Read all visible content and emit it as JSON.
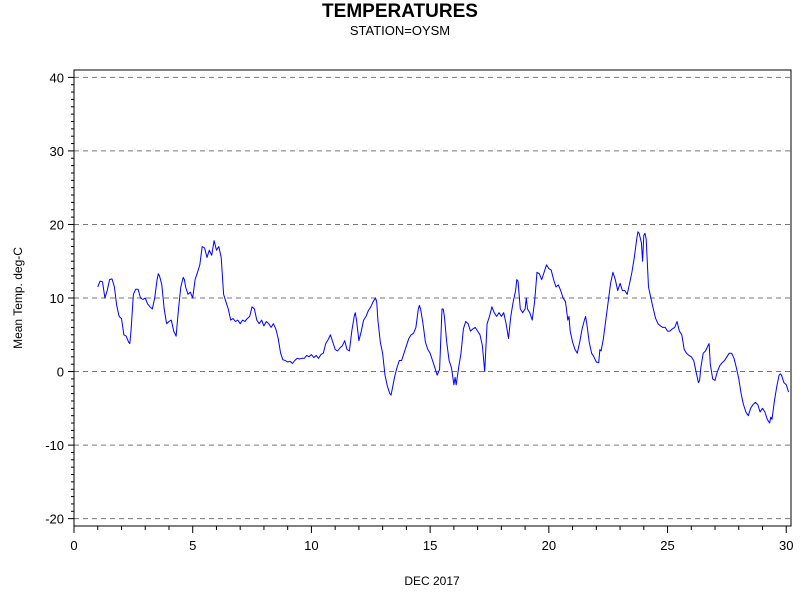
{
  "chart_data": {
    "type": "line",
    "title": "TEMPERATURES",
    "subtitle": "STATION=OYSM",
    "xlabel": "DEC 2017",
    "ylabel": "Mean Temp. deg-C",
    "xlim": [
      0,
      30.2
    ],
    "ylim": [
      -21,
      41
    ],
    "x_ticks": [
      0,
      5,
      10,
      15,
      20,
      25,
      30
    ],
    "y_ticks": [
      -20,
      -10,
      0,
      10,
      20,
      30,
      40
    ],
    "grid": "horizontal dashed",
    "series": [
      {
        "color": "#0000ff",
        "points": [
          [
            1.0,
            11.5
          ],
          [
            1.1,
            12.3
          ],
          [
            1.2,
            12.2
          ],
          [
            1.3,
            10.0
          ],
          [
            1.4,
            11.0
          ],
          [
            1.5,
            12.5
          ],
          [
            1.6,
            12.6
          ],
          [
            1.7,
            11.5
          ],
          [
            1.8,
            9.0
          ],
          [
            1.9,
            7.5
          ],
          [
            2.0,
            7.2
          ],
          [
            2.1,
            5.0
          ],
          [
            2.2,
            4.8
          ],
          [
            2.3,
            4.0
          ],
          [
            2.35,
            3.8
          ],
          [
            2.4,
            5.5
          ],
          [
            2.5,
            10.5
          ],
          [
            2.6,
            11.2
          ],
          [
            2.7,
            11.2
          ],
          [
            2.8,
            10.0
          ],
          [
            2.9,
            9.8
          ],
          [
            3.0,
            10.0
          ],
          [
            3.1,
            9.2
          ],
          [
            3.2,
            8.8
          ],
          [
            3.3,
            8.5
          ],
          [
            3.4,
            10.0
          ],
          [
            3.5,
            12.5
          ],
          [
            3.55,
            13.3
          ],
          [
            3.6,
            13.0
          ],
          [
            3.7,
            11.8
          ],
          [
            3.8,
            8.5
          ],
          [
            3.9,
            6.5
          ],
          [
            4.0,
            6.8
          ],
          [
            4.1,
            7.0
          ],
          [
            4.2,
            5.5
          ],
          [
            4.3,
            4.8
          ],
          [
            4.4,
            8.5
          ],
          [
            4.5,
            11.5
          ],
          [
            4.6,
            12.8
          ],
          [
            4.65,
            12.5
          ],
          [
            4.7,
            11.5
          ],
          [
            4.8,
            10.5
          ],
          [
            4.9,
            10.8
          ],
          [
            5.0,
            10.0
          ],
          [
            5.1,
            12.5
          ],
          [
            5.2,
            13.5
          ],
          [
            5.3,
            14.5
          ],
          [
            5.4,
            17.0
          ],
          [
            5.5,
            16.8
          ],
          [
            5.6,
            15.5
          ],
          [
            5.7,
            16.5
          ],
          [
            5.8,
            15.8
          ],
          [
            5.9,
            17.8
          ],
          [
            6.0,
            16.5
          ],
          [
            6.1,
            17.0
          ],
          [
            6.2,
            15.5
          ],
          [
            6.3,
            10.5
          ],
          [
            6.4,
            9.5
          ],
          [
            6.5,
            8.5
          ],
          [
            6.6,
            7.0
          ],
          [
            6.7,
            7.2
          ],
          [
            6.8,
            6.8
          ],
          [
            6.9,
            7.0
          ],
          [
            7.0,
            6.5
          ],
          [
            7.1,
            7.0
          ],
          [
            7.2,
            6.8
          ],
          [
            7.3,
            7.2
          ],
          [
            7.4,
            7.5
          ],
          [
            7.5,
            8.8
          ],
          [
            7.6,
            8.5
          ],
          [
            7.7,
            7.0
          ],
          [
            7.8,
            6.5
          ],
          [
            7.9,
            7.0
          ],
          [
            8.0,
            6.2
          ],
          [
            8.1,
            6.8
          ],
          [
            8.2,
            6.5
          ],
          [
            8.3,
            6.0
          ],
          [
            8.4,
            6.5
          ],
          [
            8.5,
            5.8
          ],
          [
            8.6,
            4.5
          ],
          [
            8.7,
            2.5
          ],
          [
            8.8,
            1.6
          ],
          [
            8.9,
            1.5
          ],
          [
            9.0,
            1.3
          ],
          [
            9.1,
            1.4
          ],
          [
            9.2,
            1.1
          ],
          [
            9.3,
            1.5
          ],
          [
            9.4,
            1.8
          ],
          [
            9.5,
            1.7
          ],
          [
            9.6,
            1.8
          ],
          [
            9.7,
            1.8
          ],
          [
            9.8,
            2.2
          ],
          [
            9.9,
            2.0
          ],
          [
            10.0,
            2.3
          ],
          [
            10.1,
            1.9
          ],
          [
            10.2,
            2.2
          ],
          [
            10.3,
            1.8
          ],
          [
            10.4,
            2.3
          ],
          [
            10.5,
            2.5
          ],
          [
            10.6,
            3.8
          ],
          [
            10.7,
            4.3
          ],
          [
            10.8,
            5.0
          ],
          [
            10.9,
            4.0
          ],
          [
            11.0,
            3.0
          ],
          [
            11.1,
            2.8
          ],
          [
            11.2,
            3.2
          ],
          [
            11.3,
            3.5
          ],
          [
            11.4,
            4.2
          ],
          [
            11.5,
            3.0
          ],
          [
            11.6,
            2.8
          ],
          [
            11.7,
            5.5
          ],
          [
            11.8,
            7.5
          ],
          [
            11.85,
            8.0
          ],
          [
            11.9,
            7.0
          ],
          [
            12.0,
            4.2
          ],
          [
            12.1,
            5.5
          ],
          [
            12.2,
            7.0
          ],
          [
            12.3,
            7.5
          ],
          [
            12.4,
            8.3
          ],
          [
            12.5,
            8.8
          ],
          [
            12.6,
            9.5
          ],
          [
            12.7,
            10.0
          ],
          [
            12.75,
            9.5
          ],
          [
            12.8,
            7.0
          ],
          [
            12.9,
            4.0
          ],
          [
            13.0,
            2.5
          ],
          [
            13.1,
            -0.5
          ],
          [
            13.2,
            -2.0
          ],
          [
            13.3,
            -3.0
          ],
          [
            13.35,
            -3.2
          ],
          [
            13.4,
            -2.5
          ],
          [
            13.5,
            -0.8
          ],
          [
            13.6,
            0.5
          ],
          [
            13.7,
            1.5
          ],
          [
            13.8,
            1.5
          ],
          [
            13.9,
            2.5
          ],
          [
            14.0,
            3.5
          ],
          [
            14.1,
            4.5
          ],
          [
            14.2,
            5.0
          ],
          [
            14.3,
            5.2
          ],
          [
            14.4,
            6.0
          ],
          [
            14.5,
            8.5
          ],
          [
            14.55,
            9.0
          ],
          [
            14.6,
            8.5
          ],
          [
            14.7,
            6.5
          ],
          [
            14.8,
            4.0
          ],
          [
            14.9,
            3.0
          ],
          [
            15.0,
            2.5
          ],
          [
            15.1,
            1.5
          ],
          [
            15.2,
            0.5
          ],
          [
            15.3,
            -0.5
          ],
          [
            15.4,
            0.3
          ],
          [
            15.5,
            8.5
          ],
          [
            15.55,
            8.5
          ],
          [
            15.6,
            7.5
          ],
          [
            15.7,
            4.0
          ],
          [
            15.8,
            1.5
          ],
          [
            15.9,
            0.5
          ],
          [
            16.0,
            -1.8
          ],
          [
            16.05,
            -0.8
          ],
          [
            16.1,
            -1.8
          ],
          [
            16.2,
            0.5
          ],
          [
            16.3,
            2.5
          ],
          [
            16.4,
            5.8
          ],
          [
            16.5,
            6.8
          ],
          [
            16.6,
            6.5
          ],
          [
            16.7,
            5.5
          ],
          [
            16.8,
            5.8
          ],
          [
            16.9,
            6.0
          ],
          [
            17.0,
            5.5
          ],
          [
            17.1,
            5.0
          ],
          [
            17.2,
            3.5
          ],
          [
            17.3,
            0.0
          ],
          [
            17.4,
            6.5
          ],
          [
            17.5,
            7.5
          ],
          [
            17.6,
            8.8
          ],
          [
            17.7,
            8.0
          ],
          [
            17.8,
            7.5
          ],
          [
            17.9,
            8.0
          ],
          [
            18.0,
            7.5
          ],
          [
            18.1,
            8.0
          ],
          [
            18.2,
            6.5
          ],
          [
            18.3,
            4.5
          ],
          [
            18.4,
            7.5
          ],
          [
            18.5,
            9.5
          ],
          [
            18.6,
            11.0
          ],
          [
            18.65,
            12.5
          ],
          [
            18.7,
            12.3
          ],
          [
            18.8,
            8.5
          ],
          [
            18.9,
            8.0
          ],
          [
            19.0,
            8.5
          ],
          [
            19.05,
            10.0
          ],
          [
            19.1,
            8.5
          ],
          [
            19.2,
            8.0
          ],
          [
            19.3,
            7.0
          ],
          [
            19.4,
            9.5
          ],
          [
            19.5,
            13.5
          ],
          [
            19.6,
            13.3
          ],
          [
            19.7,
            12.5
          ],
          [
            19.8,
            13.5
          ],
          [
            19.9,
            14.5
          ],
          [
            20.0,
            14.0
          ],
          [
            20.1,
            13.8
          ],
          [
            20.2,
            12.5
          ],
          [
            20.3,
            11.5
          ],
          [
            20.4,
            11.8
          ],
          [
            20.5,
            11.0
          ],
          [
            20.6,
            10.0
          ],
          [
            20.7,
            9.5
          ],
          [
            20.8,
            7.0
          ],
          [
            20.85,
            7.5
          ],
          [
            20.9,
            5.5
          ],
          [
            21.0,
            4.0
          ],
          [
            21.1,
            3.0
          ],
          [
            21.2,
            2.5
          ],
          [
            21.3,
            4.0
          ],
          [
            21.4,
            5.8
          ],
          [
            21.5,
            7.0
          ],
          [
            21.55,
            7.5
          ],
          [
            21.6,
            6.5
          ],
          [
            21.7,
            4.0
          ],
          [
            21.8,
            2.5
          ],
          [
            21.9,
            2.0
          ],
          [
            22.0,
            1.3
          ],
          [
            22.1,
            1.2
          ],
          [
            22.15,
            3.0
          ],
          [
            22.2,
            2.8
          ],
          [
            22.3,
            4.5
          ],
          [
            22.4,
            7.0
          ],
          [
            22.5,
            9.5
          ],
          [
            22.6,
            12.0
          ],
          [
            22.7,
            13.5
          ],
          [
            22.75,
            13.0
          ],
          [
            22.8,
            12.5
          ],
          [
            22.9,
            11.0
          ],
          [
            23.0,
            12.0
          ],
          [
            23.1,
            11.0
          ],
          [
            23.2,
            11.0
          ],
          [
            23.3,
            10.5
          ],
          [
            23.4,
            12.0
          ],
          [
            23.5,
            13.5
          ],
          [
            23.6,
            15.5
          ],
          [
            23.7,
            18.0
          ],
          [
            23.75,
            19.0
          ],
          [
            23.8,
            18.8
          ],
          [
            23.9,
            17.5
          ],
          [
            23.95,
            15.0
          ],
          [
            24.0,
            18.5
          ],
          [
            24.05,
            18.8
          ],
          [
            24.1,
            18.0
          ],
          [
            24.2,
            11.5
          ],
          [
            24.3,
            10.0
          ],
          [
            24.4,
            8.5
          ],
          [
            24.5,
            7.2
          ],
          [
            24.6,
            6.5
          ],
          [
            24.7,
            6.2
          ],
          [
            24.8,
            6.0
          ],
          [
            24.9,
            6.0
          ],
          [
            25.0,
            5.5
          ],
          [
            25.1,
            5.5
          ],
          [
            25.2,
            5.8
          ],
          [
            25.3,
            6.0
          ],
          [
            25.4,
            6.8
          ],
          [
            25.5,
            5.5
          ],
          [
            25.6,
            5.0
          ],
          [
            25.7,
            3.0
          ],
          [
            25.8,
            2.5
          ],
          [
            25.9,
            2.2
          ],
          [
            26.0,
            2.0
          ],
          [
            26.1,
            1.5
          ],
          [
            26.2,
            0.0
          ],
          [
            26.3,
            -1.5
          ],
          [
            26.35,
            -1.2
          ],
          [
            26.4,
            0.5
          ],
          [
            26.5,
            2.5
          ],
          [
            26.6,
            2.8
          ],
          [
            26.7,
            3.5
          ],
          [
            26.75,
            3.8
          ],
          [
            26.8,
            1.0
          ],
          [
            26.9,
            -1.0
          ],
          [
            27.0,
            -1.2
          ],
          [
            27.1,
            0.0
          ],
          [
            27.2,
            0.8
          ],
          [
            27.3,
            1.2
          ],
          [
            27.4,
            1.5
          ],
          [
            27.5,
            2.0
          ],
          [
            27.6,
            2.5
          ],
          [
            27.7,
            2.5
          ],
          [
            27.8,
            1.8
          ],
          [
            27.9,
            0.5
          ],
          [
            28.0,
            -1.0
          ],
          [
            28.1,
            -3.0
          ],
          [
            28.2,
            -4.5
          ],
          [
            28.3,
            -5.5
          ],
          [
            28.4,
            -6.0
          ],
          [
            28.5,
            -5.0
          ],
          [
            28.6,
            -4.5
          ],
          [
            28.7,
            -4.2
          ],
          [
            28.8,
            -4.5
          ],
          [
            28.9,
            -5.5
          ],
          [
            29.0,
            -5.0
          ],
          [
            29.1,
            -5.5
          ],
          [
            29.2,
            -6.5
          ],
          [
            29.3,
            -7.0
          ],
          [
            29.35,
            -6.2
          ],
          [
            29.4,
            -6.5
          ],
          [
            29.5,
            -4.0
          ],
          [
            29.6,
            -2.0
          ],
          [
            29.7,
            -0.5
          ],
          [
            29.75,
            -0.3
          ],
          [
            29.8,
            -0.5
          ],
          [
            29.9,
            -1.5
          ],
          [
            30.0,
            -1.8
          ],
          [
            30.1,
            -2.8
          ]
        ]
      }
    ]
  }
}
